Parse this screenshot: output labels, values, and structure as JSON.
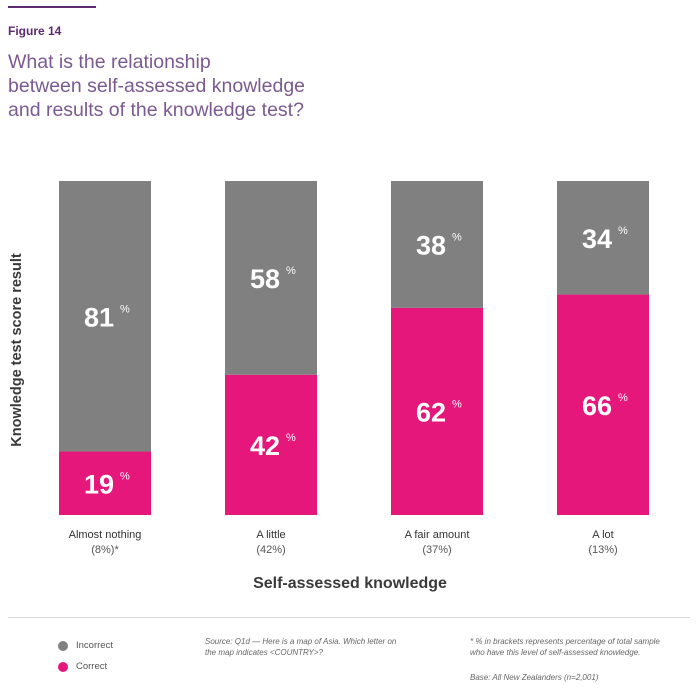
{
  "figure_label": "Figure 14",
  "title_lines": [
    "What is the relationship",
    "between self-assessed knowledge",
    "and results of the knowledge test?"
  ],
  "legend": [
    {
      "label": "Incorrect",
      "color": "#808080"
    },
    {
      "label": "Correct",
      "color": "#e6177a"
    }
  ],
  "source_lines": [
    "Source: Q1d — Here is a map of Asia. Which letter on",
    "the map indicates <COUNTRY>?"
  ],
  "footnote_lines": [
    "* % in brackets represents percentage of total sample",
    "who have this level of self-assessed knowledge."
  ],
  "base_note": "Base: All New Zealanders (n=2,001)",
  "chart_data": {
    "type": "bar",
    "stacked": true,
    "percent_suffix": "%",
    "xlabel": "Self-assessed knowledge",
    "ylabel": "Knowledge test score result",
    "ylim": [
      0,
      100
    ],
    "categories": [
      "Almost nothing",
      "A little",
      "A fair amount",
      "A lot"
    ],
    "category_shares": [
      "(8%)*",
      "(42%)",
      "(37%)",
      "(13%)"
    ],
    "series": [
      {
        "name": "Correct",
        "color": "#e6177a",
        "values": [
          19,
          42,
          62,
          66
        ]
      },
      {
        "name": "Incorrect",
        "color": "#808080",
        "values": [
          81,
          58,
          38,
          34
        ]
      }
    ]
  }
}
